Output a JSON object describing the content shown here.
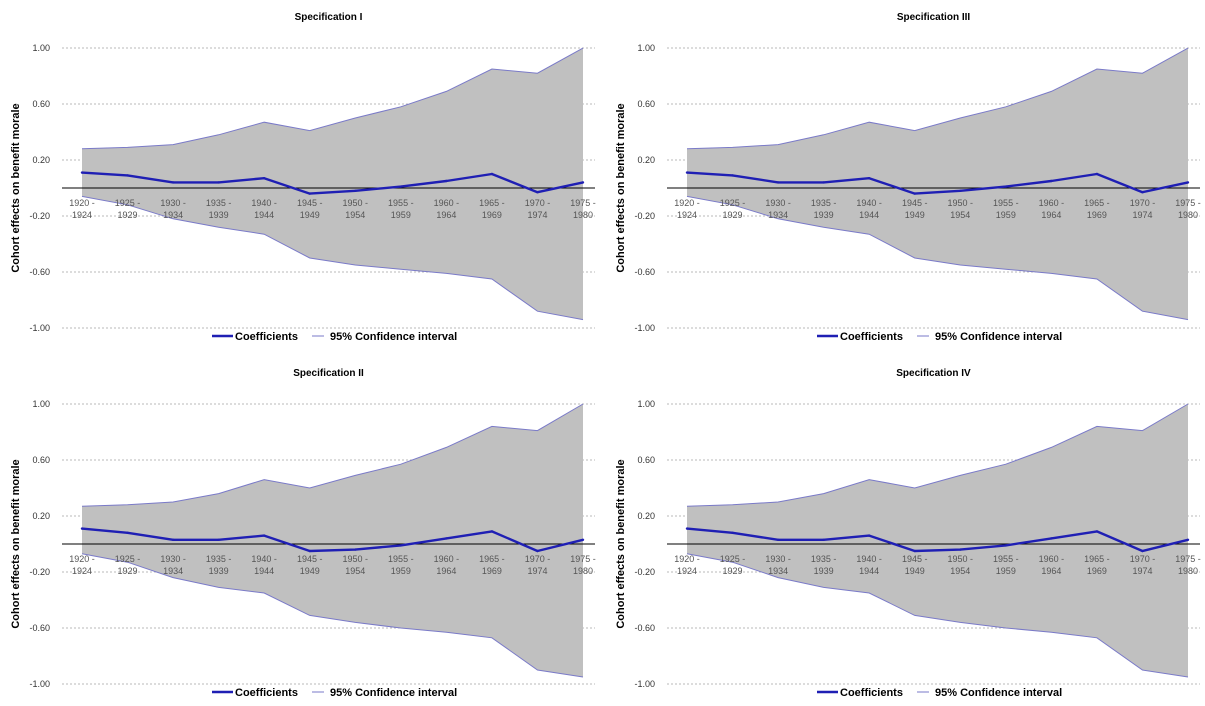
{
  "chart_data": [
    {
      "type": "area",
      "title": "Specification I",
      "ylabel": "Cohort effects on benefit morale",
      "xlabel": "",
      "ylim": [
        -1.0,
        1.0
      ],
      "yticks": [
        "1.00",
        "0.60",
        "0.20",
        "-0.20",
        "-0.60",
        "-1.00"
      ],
      "categories": [
        [
          "1920 -",
          "1924"
        ],
        [
          "1925 -",
          "1929"
        ],
        [
          "1930 -",
          "1934"
        ],
        [
          "1935 -",
          "1939"
        ],
        [
          "1940 -",
          "1944"
        ],
        [
          "1945 -",
          "1949"
        ],
        [
          "1950 -",
          "1954"
        ],
        [
          "1955 -",
          "1959"
        ],
        [
          "1960 -",
          "1964"
        ],
        [
          "1965 -",
          "1969"
        ],
        [
          "1970 -",
          "1974"
        ],
        [
          "1975 -",
          "1980"
        ]
      ],
      "grid": true,
      "legend_position": "bottom",
      "series": [
        {
          "name": "Coefficients",
          "color": "#1f1fb4",
          "values": [
            0.11,
            0.09,
            0.04,
            0.04,
            0.07,
            -0.04,
            -0.02,
            0.01,
            0.05,
            0.1,
            -0.03,
            0.04
          ]
        },
        {
          "name": "95% Confidence interval",
          "color": "#7a7ac8",
          "upper": [
            0.28,
            0.29,
            0.31,
            0.38,
            0.47,
            0.41,
            0.5,
            0.58,
            0.69,
            0.85,
            0.82,
            1.0
          ],
          "lower": [
            -0.06,
            -0.12,
            -0.22,
            -0.28,
            -0.33,
            -0.5,
            -0.55,
            -0.58,
            -0.61,
            -0.65,
            -0.88,
            -0.94
          ]
        }
      ]
    },
    {
      "type": "area",
      "title": "Specification III",
      "ylabel": "Cohort effects on benefit morale",
      "xlabel": "",
      "ylim": [
        -1.0,
        1.0
      ],
      "yticks": [
        "1.00",
        "0.60",
        "0.20",
        "-0.20",
        "-0.60",
        "-1.00"
      ],
      "categories": [
        [
          "1920 -",
          "1924"
        ],
        [
          "1925 -",
          "1929"
        ],
        [
          "1930 -",
          "1934"
        ],
        [
          "1935 -",
          "1939"
        ],
        [
          "1940 -",
          "1944"
        ],
        [
          "1945 -",
          "1949"
        ],
        [
          "1950 -",
          "1954"
        ],
        [
          "1955 -",
          "1959"
        ],
        [
          "1960 -",
          "1964"
        ],
        [
          "1965 -",
          "1969"
        ],
        [
          "1970 -",
          "1974"
        ],
        [
          "1975 -",
          "1980"
        ]
      ],
      "grid": true,
      "legend_position": "bottom",
      "series": [
        {
          "name": "Coefficients",
          "color": "#1f1fb4",
          "values": [
            0.11,
            0.09,
            0.04,
            0.04,
            0.07,
            -0.04,
            -0.02,
            0.01,
            0.05,
            0.1,
            -0.03,
            0.04
          ]
        },
        {
          "name": "95% Confidence interval",
          "color": "#7a7ac8",
          "upper": [
            0.28,
            0.29,
            0.31,
            0.38,
            0.47,
            0.41,
            0.5,
            0.58,
            0.69,
            0.85,
            0.82,
            1.0
          ],
          "lower": [
            -0.06,
            -0.12,
            -0.22,
            -0.28,
            -0.33,
            -0.5,
            -0.55,
            -0.58,
            -0.61,
            -0.65,
            -0.88,
            -0.94
          ]
        }
      ]
    },
    {
      "type": "area",
      "title": "Specification II",
      "ylabel": "Cohort effects on benefit morale",
      "xlabel": "",
      "ylim": [
        -1.0,
        1.0
      ],
      "yticks": [
        "1.00",
        "0.60",
        "0.20",
        "-0.20",
        "-0.60",
        "-1.00"
      ],
      "categories": [
        [
          "1920 -",
          "1924"
        ],
        [
          "1925 -",
          "1929"
        ],
        [
          "1930 -",
          "1934"
        ],
        [
          "1935 -",
          "1939"
        ],
        [
          "1940 -",
          "1944"
        ],
        [
          "1945 -",
          "1949"
        ],
        [
          "1950 -",
          "1954"
        ],
        [
          "1955 -",
          "1959"
        ],
        [
          "1960 -",
          "1964"
        ],
        [
          "1965 -",
          "1969"
        ],
        [
          "1970 -",
          "1974"
        ],
        [
          "1975 -",
          "1980"
        ]
      ],
      "grid": true,
      "legend_position": "bottom",
      "series": [
        {
          "name": "Coefficients",
          "color": "#1f1fb4",
          "values": [
            0.11,
            0.08,
            0.03,
            0.03,
            0.06,
            -0.05,
            -0.04,
            -0.01,
            0.04,
            0.09,
            -0.05,
            0.03
          ]
        },
        {
          "name": "95% Confidence interval",
          "color": "#7a7ac8",
          "upper": [
            0.27,
            0.28,
            0.3,
            0.36,
            0.46,
            0.4,
            0.49,
            0.57,
            0.69,
            0.84,
            0.81,
            1.0
          ],
          "lower": [
            -0.07,
            -0.13,
            -0.24,
            -0.31,
            -0.35,
            -0.51,
            -0.56,
            -0.6,
            -0.63,
            -0.67,
            -0.9,
            -0.95
          ]
        }
      ]
    },
    {
      "type": "area",
      "title": "Specification IV",
      "ylabel": "Cohort effects on benefit morale",
      "xlabel": "",
      "ylim": [
        -1.0,
        1.0
      ],
      "yticks": [
        "1.00",
        "0.60",
        "0.20",
        "-0.20",
        "-0.60",
        "-1.00"
      ],
      "categories": [
        [
          "1920 -",
          "1924"
        ],
        [
          "1925 -",
          "1929"
        ],
        [
          "1930 -",
          "1934"
        ],
        [
          "1935 -",
          "1939"
        ],
        [
          "1940 -",
          "1944"
        ],
        [
          "1945 -",
          "1949"
        ],
        [
          "1950 -",
          "1954"
        ],
        [
          "1955 -",
          "1959"
        ],
        [
          "1960 -",
          "1964"
        ],
        [
          "1965 -",
          "1969"
        ],
        [
          "1970 -",
          "1974"
        ],
        [
          "1975 -",
          "1980"
        ]
      ],
      "grid": true,
      "legend_position": "bottom",
      "series": [
        {
          "name": "Coefficients",
          "color": "#1f1fb4",
          "values": [
            0.11,
            0.08,
            0.03,
            0.03,
            0.06,
            -0.05,
            -0.04,
            -0.01,
            0.04,
            0.09,
            -0.05,
            0.03
          ]
        },
        {
          "name": "95% Confidence interval",
          "color": "#7a7ac8",
          "upper": [
            0.27,
            0.28,
            0.3,
            0.36,
            0.46,
            0.4,
            0.49,
            0.57,
            0.69,
            0.84,
            0.81,
            1.0
          ],
          "lower": [
            -0.07,
            -0.13,
            -0.24,
            -0.31,
            -0.35,
            -0.51,
            -0.56,
            -0.6,
            -0.63,
            -0.67,
            -0.9,
            -0.95
          ]
        }
      ]
    }
  ]
}
